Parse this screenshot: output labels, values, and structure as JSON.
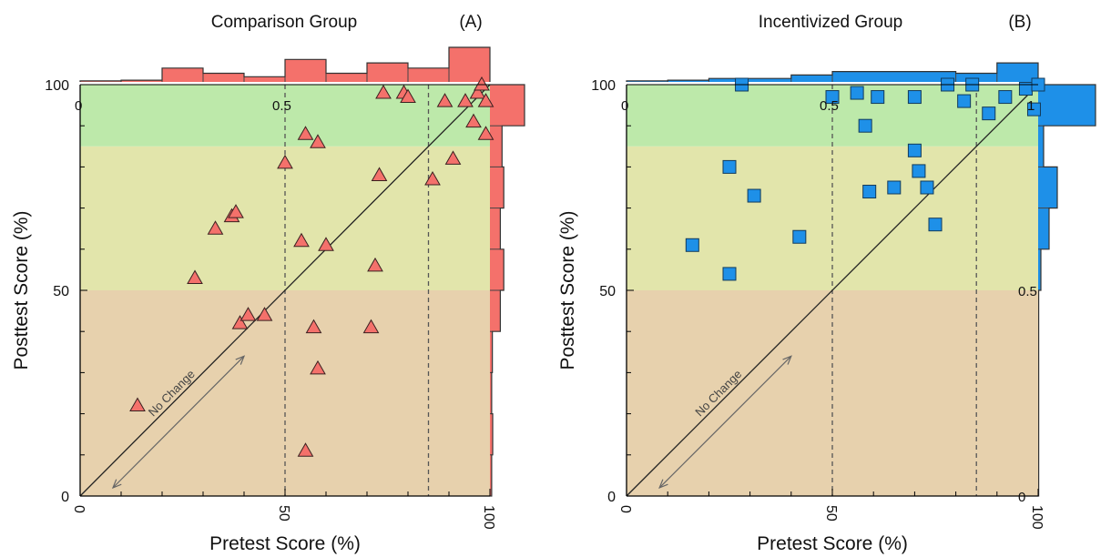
{
  "chart_data": [
    {
      "type": "scatter",
      "title": "Comparison Group",
      "panel_label": "(A)",
      "xlabel": "Pretest Score (%)",
      "ylabel": "Posttest Score (%)",
      "xlim": [
        0,
        100
      ],
      "ylim": [
        0,
        100
      ],
      "x_ticks": [
        "0",
        "50",
        "100"
      ],
      "y_ticks": [
        "0",
        "50",
        "100"
      ],
      "marker": "triangle",
      "marker_color": "#F4716B",
      "hist_color": "#F4716B",
      "bands": [
        {
          "from": 0,
          "to": 50,
          "color": "#E7D1AD"
        },
        {
          "from": 50,
          "to": 85,
          "color": "#E2E5AB"
        },
        {
          "from": 85,
          "to": 100,
          "color": "#BDE9AA"
        }
      ],
      "vlines": [
        50,
        85
      ],
      "diagonal_label": "No Change",
      "hist_ticks_top": [
        "0",
        "0.5"
      ],
      "hist_ticks_right": [],
      "top_hist": [
        {
          "from": 0,
          "to": 10,
          "value": 0.03
        },
        {
          "from": 10,
          "to": 20,
          "value": 0.05
        },
        {
          "from": 20,
          "to": 30,
          "value": 0.4
        },
        {
          "from": 30,
          "to": 40,
          "value": 0.25
        },
        {
          "from": 40,
          "to": 50,
          "value": 0.15
        },
        {
          "from": 50,
          "to": 60,
          "value": 0.65
        },
        {
          "from": 60,
          "to": 70,
          "value": 0.25
        },
        {
          "from": 70,
          "to": 80,
          "value": 0.55
        },
        {
          "from": 80,
          "to": 90,
          "value": 0.4
        },
        {
          "from": 90,
          "to": 100,
          "value": 1.0
        }
      ],
      "right_hist": [
        {
          "from": 0,
          "to": 10,
          "value": 0.05
        },
        {
          "from": 10,
          "to": 20,
          "value": 0.08
        },
        {
          "from": 20,
          "to": 30,
          "value": 0.05
        },
        {
          "from": 30,
          "to": 40,
          "value": 0.07
        },
        {
          "from": 40,
          "to": 50,
          "value": 0.3
        },
        {
          "from": 50,
          "to": 60,
          "value": 0.4
        },
        {
          "from": 60,
          "to": 70,
          "value": 0.3
        },
        {
          "from": 70,
          "to": 80,
          "value": 0.4
        },
        {
          "from": 80,
          "to": 90,
          "value": 0.35
        },
        {
          "from": 90,
          "to": 100,
          "value": 1.0
        }
      ],
      "points": [
        [
          14,
          22
        ],
        [
          28,
          53
        ],
        [
          33,
          65
        ],
        [
          37,
          68
        ],
        [
          38,
          69
        ],
        [
          39,
          42
        ],
        [
          41,
          44
        ],
        [
          45,
          44
        ],
        [
          50,
          81
        ],
        [
          54,
          62
        ],
        [
          55,
          88
        ],
        [
          55,
          11
        ],
        [
          57,
          41
        ],
        [
          58,
          31
        ],
        [
          58,
          86
        ],
        [
          60,
          61
        ],
        [
          71,
          41
        ],
        [
          72,
          56
        ],
        [
          73,
          78
        ],
        [
          74,
          98
        ],
        [
          79,
          98
        ],
        [
          80,
          97
        ],
        [
          86,
          77
        ],
        [
          89,
          96
        ],
        [
          91,
          82
        ],
        [
          94,
          96
        ],
        [
          96,
          91
        ],
        [
          97,
          98
        ],
        [
          98,
          100
        ],
        [
          99,
          96
        ],
        [
          99,
          88
        ]
      ]
    },
    {
      "type": "scatter",
      "title": "Incentivized Group",
      "panel_label": "(B)",
      "xlabel": "Pretest Score (%)",
      "ylabel": "Posttest Score (%)",
      "xlim": [
        0,
        100
      ],
      "ylim": [
        0,
        100
      ],
      "x_ticks": [
        "0",
        "50",
        "100"
      ],
      "y_ticks": [
        "0",
        "50",
        "100"
      ],
      "marker": "square",
      "marker_color": "#1E90E8",
      "hist_color": "#1E90E8",
      "bands": [
        {
          "from": 0,
          "to": 50,
          "color": "#E7D1AD"
        },
        {
          "from": 50,
          "to": 85,
          "color": "#E2E5AB"
        },
        {
          "from": 85,
          "to": 100,
          "color": "#BDE9AA"
        }
      ],
      "vlines": [
        50,
        85
      ],
      "diagonal_label": "No Change",
      "hist_ticks_top": [
        "0",
        "0.5",
        "1"
      ],
      "hist_ticks_right": [
        "0",
        "0.5"
      ],
      "top_hist": [
        {
          "from": 0,
          "to": 10,
          "value": 0.03
        },
        {
          "from": 10,
          "to": 20,
          "value": 0.05
        },
        {
          "from": 20,
          "to": 40,
          "value": 0.1
        },
        {
          "from": 40,
          "to": 50,
          "value": 0.2
        },
        {
          "from": 50,
          "to": 80,
          "value": 0.3
        },
        {
          "from": 80,
          "to": 90,
          "value": 0.25
        },
        {
          "from": 90,
          "to": 100,
          "value": 0.55
        }
      ],
      "right_hist": [
        {
          "from": 0,
          "to": 50,
          "value": 0.02
        },
        {
          "from": 50,
          "to": 60,
          "value": 0.1
        },
        {
          "from": 60,
          "to": 70,
          "value": 0.4
        },
        {
          "from": 70,
          "to": 80,
          "value": 0.7
        },
        {
          "from": 80,
          "to": 90,
          "value": 0.2
        },
        {
          "from": 90,
          "to": 100,
          "value": 2.1
        }
      ],
      "points": [
        [
          16,
          61
        ],
        [
          25,
          54
        ],
        [
          25,
          80
        ],
        [
          31,
          73
        ],
        [
          42,
          63
        ],
        [
          50,
          97
        ],
        [
          56,
          98
        ],
        [
          58,
          90
        ],
        [
          59,
          74
        ],
        [
          61,
          97
        ],
        [
          65,
          75
        ],
        [
          70,
          97
        ],
        [
          70,
          84
        ],
        [
          71,
          79
        ],
        [
          73,
          75
        ],
        [
          75,
          66
        ],
        [
          82,
          96
        ],
        [
          88,
          93
        ],
        [
          92,
          97
        ],
        [
          97,
          99
        ],
        [
          99,
          94
        ],
        [
          100,
          100
        ],
        [
          28,
          100
        ],
        [
          84,
          100
        ],
        [
          78,
          100
        ]
      ]
    }
  ]
}
